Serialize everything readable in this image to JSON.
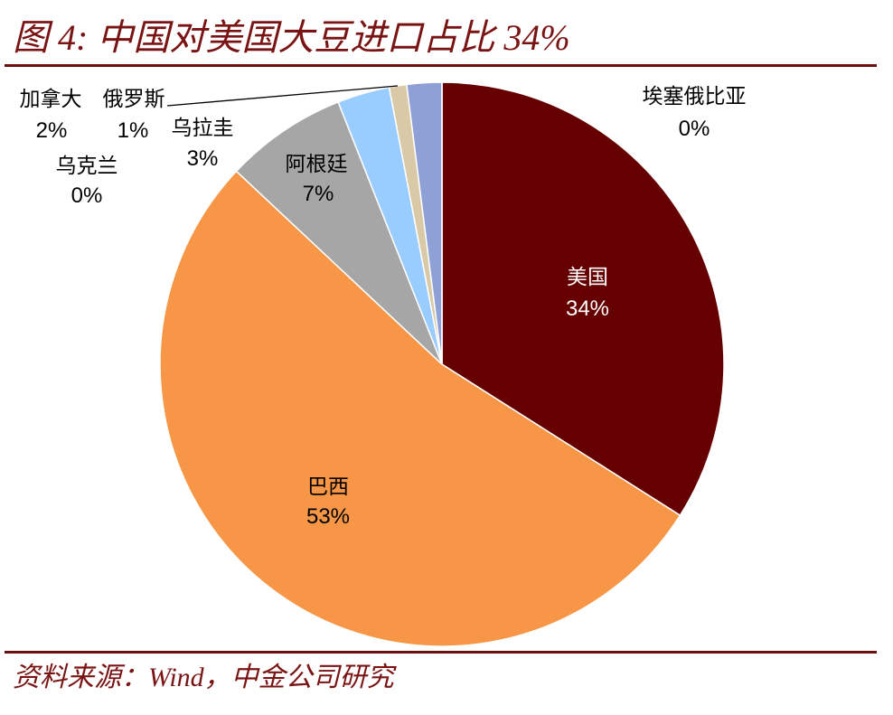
{
  "chart_data": {
    "type": "pie",
    "title": "图 4: 中国对美国大豆进口占比 34%",
    "categories": [
      "美国",
      "巴西",
      "阿根廷",
      "乌拉圭",
      "乌克兰",
      "俄罗斯",
      "加拿大",
      "埃塞俄比亚"
    ],
    "values": [
      34,
      53,
      7,
      3,
      0,
      1,
      2,
      0
    ],
    "labels": [
      "34%",
      "53%",
      "7%",
      "3%",
      "0%",
      "1%",
      "2%",
      "0%"
    ],
    "colors": [
      "#660000",
      "#F79646",
      "#A6A6A6",
      "#99CCFF",
      null,
      "#D9C9A6",
      "#8EA0D6",
      null
    ]
  },
  "source": "资料来源：Wind，中金公司研究"
}
